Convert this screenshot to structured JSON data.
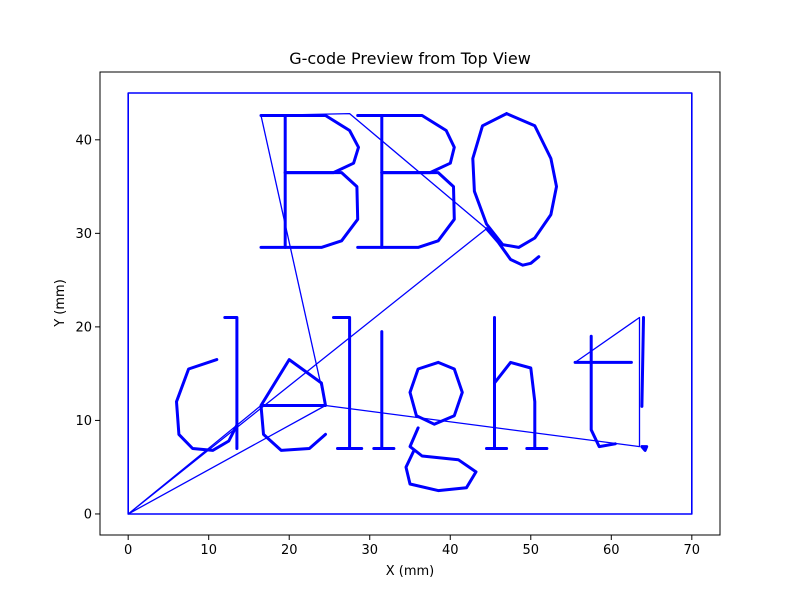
{
  "chart_data": {
    "type": "line",
    "title": "G-code Preview from Top View",
    "xlabel": "X (mm)",
    "ylabel": "Y (mm)",
    "xlim": [
      -3.5,
      73.5
    ],
    "ylim": [
      -2.25,
      47.25
    ],
    "xticks": [
      0,
      10,
      20,
      30,
      40,
      50,
      60,
      70
    ],
    "yticks": [
      0,
      10,
      20,
      30,
      40
    ],
    "grid": false,
    "line_color": "#0000ff",
    "series": [
      {
        "kind": "border",
        "points": [
          [
            0,
            0
          ],
          [
            70,
            0
          ],
          [
            70,
            45
          ],
          [
            0,
            45
          ],
          [
            0,
            0
          ]
        ]
      },
      {
        "kind": "travel",
        "points": [
          [
            0,
            0
          ],
          [
            24.5,
            11.6
          ],
          [
            16.5,
            42.6
          ],
          [
            27.5,
            42.8
          ],
          [
            44.5,
            30.5
          ],
          [
            0,
            0
          ],
          [
            16.5,
            11.6
          ],
          [
            24.5,
            11.6
          ],
          [
            63.5,
            7.2
          ],
          [
            63.5,
            21
          ],
          [
            55.5,
            16.2
          ]
        ]
      },
      {
        "kind": "text",
        "label": "BBQ",
        "strokes": [
          [
            [
              16.5,
              28.5
            ],
            [
              19.5,
              28.5
            ],
            [
              19.5,
              42.6
            ],
            [
              16.5,
              42.6
            ]
          ],
          [
            [
              19.5,
              42.6
            ],
            [
              24.5,
              42.6
            ],
            [
              27.5,
              41
            ],
            [
              28.6,
              39.2
            ],
            [
              28.0,
              37.5
            ],
            [
              25.5,
              36.5
            ],
            [
              19.5,
              36.5
            ]
          ],
          [
            [
              19.5,
              36.5
            ],
            [
              26.5,
              36.5
            ],
            [
              28.4,
              35
            ],
            [
              28.5,
              31.5
            ],
            [
              26.5,
              29.2
            ],
            [
              24,
              28.5
            ],
            [
              19.5,
              28.5
            ]
          ],
          [
            [
              28.5,
              28.5
            ],
            [
              31.5,
              28.5
            ],
            [
              31.5,
              42.6
            ],
            [
              28.5,
              42.6
            ]
          ],
          [
            [
              31.5,
              42.6
            ],
            [
              36.5,
              42.6
            ],
            [
              39.5,
              41
            ],
            [
              40.5,
              39.2
            ],
            [
              40.0,
              37.5
            ],
            [
              37.5,
              36.5
            ],
            [
              31.5,
              36.5
            ]
          ],
          [
            [
              31.5,
              36.5
            ],
            [
              38.5,
              36.5
            ],
            [
              40.4,
              35
            ],
            [
              40.5,
              31.5
            ],
            [
              38.5,
              29.2
            ],
            [
              36,
              28.5
            ],
            [
              31.5,
              28.5
            ]
          ],
          [
            [
              47,
              42.8
            ],
            [
              50.5,
              41.5
            ],
            [
              52.5,
              38
            ],
            [
              53.2,
              35
            ],
            [
              52.5,
              32
            ],
            [
              50.5,
              29.5
            ],
            [
              48.5,
              28.5
            ],
            [
              46.5,
              28.8
            ],
            [
              44.5,
              31
            ],
            [
              43,
              34.5
            ],
            [
              42.8,
              38
            ],
            [
              44,
              41.5
            ],
            [
              47,
              42.8
            ]
          ],
          [
            [
              44.5,
              30.5
            ],
            [
              46,
              29
            ],
            [
              47.5,
              27.2
            ],
            [
              49,
              26.6
            ],
            [
              50,
              26.8
            ],
            [
              51,
              27.5
            ]
          ]
        ]
      },
      {
        "kind": "text",
        "label": "delight!",
        "strokes": [
          [
            [
              11,
              16.5
            ],
            [
              7.5,
              15.5
            ],
            [
              6,
              12
            ],
            [
              6.3,
              8.5
            ],
            [
              8,
              7
            ],
            [
              10.5,
              6.8
            ],
            [
              12.5,
              7.8
            ],
            [
              13.5,
              9.5
            ]
          ],
          [
            [
              13.5,
              7
            ],
            [
              13.5,
              21
            ],
            [
              12,
              21
            ]
          ],
          [
            [
              16.5,
              11.6
            ],
            [
              20,
              16.5
            ],
            [
              24,
              14
            ],
            [
              24.5,
              11.6
            ],
            [
              16.5,
              11.6
            ],
            [
              16.8,
              8.5
            ],
            [
              19,
              6.8
            ],
            [
              22.5,
              7
            ],
            [
              24.5,
              8.5
            ]
          ],
          [
            [
              25.5,
              21
            ],
            [
              27.5,
              21
            ],
            [
              27.5,
              7
            ],
            [
              26,
              7
            ],
            [
              29,
              7
            ]
          ],
          [
            [
              31.5,
              7
            ],
            [
              31.5,
              19.5
            ],
            [
              31.5,
              7
            ],
            [
              30.5,
              7
            ],
            [
              33,
              7
            ]
          ],
          [
            [
              38.5,
              16.2
            ],
            [
              36,
              15.5
            ],
            [
              35,
              13
            ],
            [
              35.8,
              10.5
            ],
            [
              38,
              9.6
            ],
            [
              40.5,
              10.5
            ],
            [
              41.5,
              13
            ],
            [
              40.5,
              15.5
            ],
            [
              38.5,
              16.2
            ]
          ],
          [
            [
              36,
              9.2
            ],
            [
              35,
              7.2
            ],
            [
              36.5,
              6.2
            ],
            [
              41,
              5.8
            ],
            [
              43.2,
              4.5
            ],
            [
              42,
              2.8
            ],
            [
              38.5,
              2.5
            ],
            [
              35,
              3.2
            ],
            [
              34.5,
              5
            ],
            [
              35.5,
              6.8
            ]
          ],
          [
            [
              45.5,
              21
            ],
            [
              45.5,
              7
            ],
            [
              44.5,
              7
            ],
            [
              47,
              7
            ]
          ],
          [
            [
              45.5,
              14
            ],
            [
              47.5,
              16.2
            ],
            [
              50,
              15.6
            ],
            [
              50.5,
              12
            ],
            [
              50.5,
              7
            ],
            [
              49.5,
              7
            ],
            [
              52,
              7
            ]
          ],
          [
            [
              57.5,
              19
            ],
            [
              57.5,
              9
            ],
            [
              58.5,
              7.2
            ],
            [
              60.5,
              7.5
            ]
          ],
          [
            [
              55.5,
              16.2
            ],
            [
              62.5,
              16.2
            ]
          ],
          [
            [
              64,
              21
            ],
            [
              63.8,
              11.5
            ]
          ],
          [
            [
              63.8,
              7.2
            ],
            [
              64.4,
              7.2
            ],
            [
              64.2,
              6.8
            ],
            [
              63.8,
              7.2
            ]
          ]
        ]
      }
    ]
  }
}
